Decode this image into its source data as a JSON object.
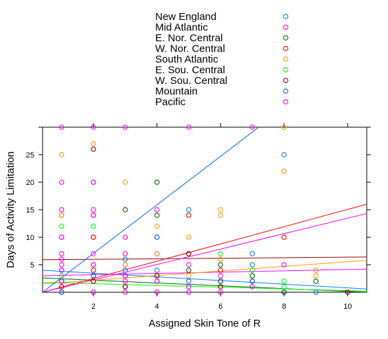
{
  "chart_data": {
    "type": "scatter",
    "title": "",
    "xlabel": "Assigned Skin Tone of R",
    "ylabel": "Days of Activity Limitation",
    "xlim": [
      0.4,
      10.6
    ],
    "ylim": [
      0,
      30
    ],
    "x_ticks": [
      2,
      4,
      6,
      8,
      10
    ],
    "y_ticks": [
      5,
      10,
      15,
      20,
      25
    ],
    "grid": false,
    "legend_position": "top",
    "series": [
      {
        "name": "New England",
        "color": "#0080ff",
        "points": [
          [
            1,
            0
          ],
          [
            1,
            2
          ],
          [
            2,
            0
          ],
          [
            3,
            1
          ],
          [
            3,
            6
          ],
          [
            4,
            4
          ],
          [
            4,
            10
          ],
          [
            5,
            15
          ],
          [
            5,
            1
          ],
          [
            7,
            7
          ],
          [
            7,
            5
          ],
          [
            7,
            2
          ],
          [
            8,
            25
          ],
          [
            8,
            0
          ],
          [
            9,
            0
          ]
        ],
        "trend": [
          [
            0.4,
            4.0
          ],
          [
            10.6,
            0.6
          ]
        ]
      },
      {
        "name": "Mid Atlantic",
        "color": "#ff00ff",
        "points": [
          [
            1,
            30
          ],
          [
            1,
            15
          ],
          [
            1,
            10
          ],
          [
            1,
            7
          ],
          [
            1,
            5
          ],
          [
            1,
            3
          ],
          [
            1,
            0
          ],
          [
            2,
            30
          ],
          [
            2,
            15
          ],
          [
            2,
            10
          ],
          [
            2,
            7
          ],
          [
            2,
            5
          ],
          [
            2,
            2
          ],
          [
            2,
            0
          ],
          [
            3,
            30
          ],
          [
            3,
            10
          ],
          [
            3,
            5
          ],
          [
            3,
            2
          ],
          [
            3,
            0
          ],
          [
            4,
            15
          ],
          [
            4,
            7
          ],
          [
            4,
            3
          ],
          [
            4,
            0
          ],
          [
            5,
            30
          ],
          [
            5,
            5
          ],
          [
            5,
            0
          ],
          [
            6,
            2
          ],
          [
            6,
            0
          ],
          [
            7,
            30
          ],
          [
            7,
            2
          ],
          [
            8,
            5
          ],
          [
            8,
            0
          ]
        ],
        "trend": [
          [
            0.4,
            3.0
          ],
          [
            10.6,
            4.2
          ]
        ]
      },
      {
        "name": "E. Nor. Central",
        "color": "#006400",
        "points": [
          [
            1,
            1
          ],
          [
            2,
            3
          ],
          [
            3,
            15
          ],
          [
            3,
            3
          ],
          [
            4,
            20
          ],
          [
            4,
            14
          ],
          [
            4,
            2
          ],
          [
            5,
            7
          ],
          [
            5,
            4
          ],
          [
            6,
            5
          ],
          [
            6,
            2
          ],
          [
            7,
            3
          ],
          [
            8,
            0
          ],
          [
            9,
            2
          ]
        ],
        "trend": [
          [
            0.4,
            2.6
          ],
          [
            10.6,
            0
          ]
        ]
      },
      {
        "name": "W. Nor. Central",
        "color": "#ff0000",
        "points": [
          [
            1,
            14
          ],
          [
            1,
            1
          ],
          [
            2,
            10
          ],
          [
            2,
            4
          ],
          [
            3,
            3
          ],
          [
            3,
            1
          ],
          [
            5,
            14
          ],
          [
            6,
            4
          ],
          [
            8,
            10
          ]
        ],
        "trend": [
          [
            0.4,
            0
          ],
          [
            10.6,
            16
          ]
        ]
      },
      {
        "name": "South Atlantic",
        "color": "#ff9900",
        "points": [
          [
            1,
            25
          ],
          [
            1,
            14
          ],
          [
            2,
            27
          ],
          [
            2,
            2
          ],
          [
            3,
            20
          ],
          [
            3,
            5
          ],
          [
            4,
            12
          ],
          [
            4,
            7
          ],
          [
            5,
            10
          ],
          [
            5,
            3
          ],
          [
            6,
            15
          ],
          [
            6,
            14
          ],
          [
            6,
            6
          ],
          [
            7,
            4
          ],
          [
            8,
            30
          ],
          [
            8,
            22
          ],
          [
            9,
            4
          ],
          [
            9,
            3
          ]
        ],
        "trend": [
          [
            0.4,
            1.5
          ],
          [
            10.6,
            5.8
          ]
        ]
      },
      {
        "name": "E. Sou. Central",
        "color": "#00ff00",
        "points": [
          [
            1,
            12
          ],
          [
            1,
            3
          ],
          [
            2,
            12
          ],
          [
            3,
            1
          ],
          [
            4,
            2
          ],
          [
            5,
            1
          ],
          [
            6,
            7
          ],
          [
            7,
            4
          ],
          [
            8,
            2
          ],
          [
            8,
            1
          ]
        ],
        "trend": [
          [
            0.4,
            1.8
          ],
          [
            10.6,
            0.2
          ]
        ]
      },
      {
        "name": "W. Sou. Central",
        "color": "#990000",
        "points": [
          [
            1,
            2
          ],
          [
            2,
            26
          ],
          [
            2,
            14
          ],
          [
            2,
            2
          ],
          [
            3,
            1
          ],
          [
            4,
            3
          ],
          [
            5,
            7
          ],
          [
            6,
            1
          ],
          [
            10,
            0
          ]
        ],
        "trend": [
          [
            0.4,
            5.9
          ],
          [
            10.6,
            6.4
          ]
        ]
      },
      {
        "name": "Mountain",
        "color": "#0066ff",
        "points": [
          [
            1,
            4
          ],
          [
            1,
            0
          ],
          [
            2,
            20
          ],
          [
            2,
            3
          ],
          [
            3,
            4
          ],
          [
            4,
            10
          ],
          [
            5,
            2
          ],
          [
            7,
            2
          ]
        ],
        "trend": [
          [
            0.4,
            0
          ],
          [
            10.6,
            45
          ]
        ]
      },
      {
        "name": "Pacific",
        "color": "#ff00ff",
        "points": [
          [
            1,
            20
          ],
          [
            1,
            10
          ],
          [
            1,
            6
          ],
          [
            1,
            4
          ],
          [
            1,
            2
          ],
          [
            2,
            20
          ],
          [
            2,
            14
          ],
          [
            2,
            5
          ],
          [
            3,
            7
          ],
          [
            3,
            3
          ],
          [
            4,
            2
          ],
          [
            5,
            1
          ],
          [
            6,
            3
          ],
          [
            7,
            1
          ]
        ],
        "trend": [
          [
            0.4,
            0
          ],
          [
            10.6,
            14.3
          ]
        ]
      }
    ]
  }
}
